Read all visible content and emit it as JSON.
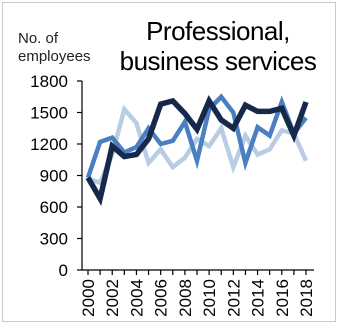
{
  "chart_data": {
    "type": "line",
    "title": "Professional, business services",
    "ylabel": "No. of employees",
    "xlabel": "",
    "ylim": [
      0,
      1800
    ],
    "yticks": [
      0,
      300,
      600,
      900,
      1200,
      1500,
      1800
    ],
    "x": [
      2000,
      2001,
      2002,
      2003,
      2004,
      2005,
      2006,
      2007,
      2008,
      2009,
      2010,
      2011,
      2012,
      2013,
      2014,
      2015,
      2016,
      2017,
      2018
    ],
    "xticks": [
      2000,
      2002,
      2004,
      2006,
      2008,
      2010,
      2012,
      2014,
      2016,
      2018
    ],
    "grid": false,
    "legend": false,
    "series": [
      {
        "color": "#b8cce4",
        "values": [
          870,
          830,
          1100,
          1530,
          1400,
          1020,
          1150,
          980,
          1070,
          1250,
          1180,
          1350,
          980,
          1280,
          1100,
          1150,
          1330,
          1300,
          1040
        ]
      },
      {
        "color": "#4a7fc1",
        "values": [
          880,
          1220,
          1260,
          1120,
          1170,
          1350,
          1200,
          1230,
          1410,
          1040,
          1530,
          1650,
          1500,
          1020,
          1360,
          1280,
          1600,
          1300,
          1450
        ]
      },
      {
        "color": "#17294a",
        "values": [
          880,
          680,
          1180,
          1080,
          1100,
          1250,
          1580,
          1610,
          1490,
          1340,
          1610,
          1430,
          1350,
          1570,
          1510,
          1510,
          1540,
          1280,
          1600
        ]
      }
    ]
  }
}
